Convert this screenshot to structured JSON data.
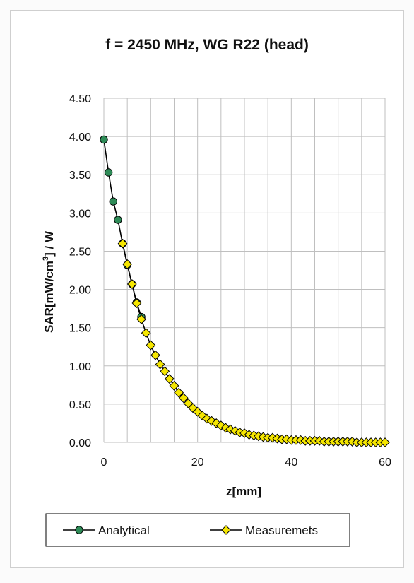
{
  "chart_data": {
    "type": "line",
    "title": "f = 2450 MHz, WG R22 (head)",
    "xlabel": "z[mm]",
    "ylabel_prefix": "SAR[mW/cm",
    "ylabel_sup": "3",
    "ylabel_suffix": "] / W",
    "xlim": [
      0,
      60
    ],
    "ylim": [
      0,
      4.5
    ],
    "x_ticks": [
      "0",
      "20",
      "40",
      "60"
    ],
    "y_ticks": [
      "0.00",
      "0.50",
      "1.00",
      "1.50",
      "2.00",
      "2.50",
      "3.00",
      "3.50",
      "4.00",
      "4.50"
    ],
    "x_grid_step": 5,
    "y_grid_step": 0.5,
    "grid": true,
    "legend_position": "bottom",
    "series": [
      {
        "name": "Analytical",
        "marker": "circle",
        "color": "#2e8b57",
        "x": [
          0,
          1,
          2,
          3,
          4,
          5,
          6,
          7,
          8
        ],
        "y": [
          3.96,
          3.53,
          3.15,
          2.91,
          2.6,
          2.32,
          2.07,
          1.83,
          1.64
        ]
      },
      {
        "name": "Measuremets",
        "marker": "diamond",
        "color": "#f5e600",
        "x": [
          4,
          5,
          6,
          7,
          8,
          9,
          10,
          11,
          12,
          13,
          14,
          15,
          16,
          17,
          18,
          19,
          20,
          21,
          22,
          23,
          24,
          25,
          26,
          27,
          28,
          29,
          30,
          31,
          32,
          33,
          34,
          35,
          36,
          37,
          38,
          39,
          40,
          41,
          42,
          43,
          44,
          45,
          46,
          47,
          48,
          49,
          50,
          51,
          52,
          53,
          54,
          55,
          56,
          57,
          58,
          59,
          60
        ],
        "y": [
          2.6,
          2.33,
          2.07,
          1.82,
          1.61,
          1.43,
          1.27,
          1.14,
          1.02,
          0.93,
          0.83,
          0.74,
          0.65,
          0.58,
          0.51,
          0.45,
          0.4,
          0.35,
          0.31,
          0.28,
          0.25,
          0.22,
          0.19,
          0.17,
          0.15,
          0.13,
          0.12,
          0.1,
          0.09,
          0.08,
          0.07,
          0.06,
          0.06,
          0.05,
          0.04,
          0.04,
          0.03,
          0.03,
          0.03,
          0.02,
          0.02,
          0.02,
          0.02,
          0.01,
          0.01,
          0.01,
          0.01,
          0.01,
          0.01,
          0.01,
          0.0,
          0.0,
          0.0,
          0.0,
          0.0,
          0.0,
          0.0
        ]
      }
    ],
    "line_color": "#000000",
    "plot_background": "#ffffff",
    "grid_color": "#bfbfbf"
  }
}
